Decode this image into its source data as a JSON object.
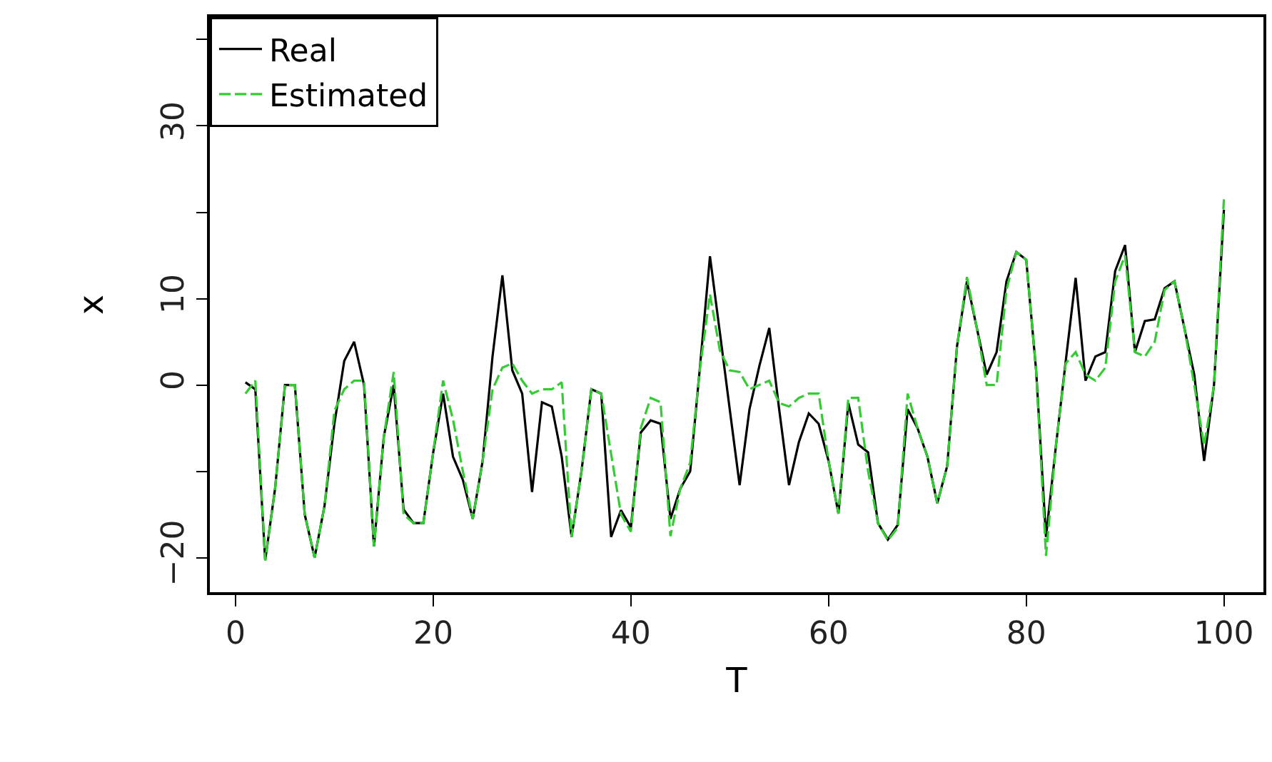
{
  "chart_data": {
    "type": "line",
    "xlabel": "T",
    "ylabel": "x",
    "x": [
      1,
      2,
      3,
      4,
      5,
      6,
      7,
      8,
      9,
      10,
      11,
      12,
      13,
      14,
      15,
      16,
      17,
      18,
      19,
      20,
      21,
      22,
      23,
      24,
      25,
      26,
      27,
      28,
      29,
      30,
      31,
      32,
      33,
      34,
      35,
      36,
      37,
      38,
      39,
      40,
      41,
      42,
      43,
      44,
      45,
      46,
      47,
      48,
      49,
      50,
      51,
      52,
      53,
      54,
      55,
      56,
      57,
      58,
      59,
      60,
      61,
      62,
      63,
      64,
      65,
      66,
      67,
      68,
      69,
      70,
      71,
      72,
      73,
      74,
      75,
      76,
      77,
      78,
      79,
      80,
      81,
      82,
      83,
      84,
      85,
      86,
      87,
      88,
      89,
      90,
      91,
      92,
      93,
      94,
      95,
      96,
      97,
      98,
      99,
      100
    ],
    "series": [
      {
        "name": "Real",
        "color": "#000000",
        "line_style": "solid",
        "values": [
          0.3,
          -0.5,
          -20.3,
          -12,
          0,
          0,
          -15,
          -20,
          -14,
          -4.5,
          2.8,
          5,
          0,
          -18.7,
          -6,
          0,
          -14.4,
          -16,
          -16,
          -7.8,
          -1,
          -8.3,
          -11,
          -15.5,
          -8.8,
          3.3,
          12.7,
          1.7,
          -1,
          -12.4,
          -2,
          -2.5,
          -8.3,
          -17.6,
          -10,
          -0.5,
          -1,
          -17.6,
          -14.5,
          -16.5,
          -5.5,
          -4.1,
          -4.5,
          -15.5,
          -12,
          -10,
          2.2,
          14.9,
          6.1,
          -2.8,
          -11.6,
          -2.8,
          2.2,
          6.6,
          -2.8,
          -11.6,
          -6.6,
          -3.3,
          -4.5,
          -8.8,
          -14.9,
          -2.1,
          -6.9,
          -7.8,
          -16,
          -17.9,
          -16.2,
          -2.8,
          -5,
          -8.3,
          -13.7,
          -9.4,
          4.5,
          12,
          6.6,
          1.2,
          3.8,
          12,
          15.4,
          14.5,
          1.7,
          -17.6,
          -7.1,
          2.8,
          12.4,
          0.5,
          3.3,
          3.8,
          13.2,
          16.2,
          3.8,
          7.4,
          7.6,
          11.2,
          12,
          6.6,
          1.2,
          -8.8,
          0,
          20.3
        ]
      },
      {
        "name": "Estimated",
        "color": "#33cc33",
        "line_style": "dashed",
        "values": [
          -1,
          0.5,
          -20.3,
          -12,
          0,
          0,
          -15,
          -20,
          -14,
          -3,
          -0.5,
          0.5,
          0.5,
          -18.7,
          -6,
          1.5,
          -15,
          -16,
          -16,
          -7.8,
          0.5,
          -4,
          -10,
          -15.5,
          -8.8,
          -0.5,
          2,
          2.5,
          0.5,
          -1,
          -0.5,
          -0.5,
          0.3,
          -17.6,
          -10,
          -0.5,
          -1,
          -8,
          -15,
          -17,
          -5,
          -1.5,
          -2,
          -17.5,
          -12,
          -9,
          2,
          10.5,
          4,
          1.7,
          1.5,
          -0.5,
          0,
          0.5,
          -2.1,
          -2.5,
          -1.5,
          -1,
          -1,
          -8.8,
          -14.9,
          -1.5,
          -1.5,
          -10,
          -16,
          -18,
          -16.5,
          -1,
          -5,
          -8.3,
          -13.7,
          -9.4,
          4.5,
          12.5,
          6.6,
          0,
          0,
          11,
          15.4,
          14.5,
          1.7,
          -19.8,
          -7,
          2.5,
          3.8,
          1.2,
          0.5,
          2,
          12,
          15,
          3.8,
          3.3,
          5,
          11,
          12,
          6.6,
          0,
          -7,
          0,
          21.5
        ]
      }
    ],
    "xlim": [
      -2.6,
      104
    ],
    "ylim": [
      -24,
      42.6
    ],
    "xticks": [
      0,
      20,
      40,
      60,
      80,
      100
    ],
    "yticks": [
      -20,
      {
        "value": -10,
        "label": null
      },
      0,
      10,
      {
        "value": 20,
        "label": null
      },
      30,
      {
        "value": 40,
        "label": null
      }
    ],
    "legend": "top left"
  }
}
